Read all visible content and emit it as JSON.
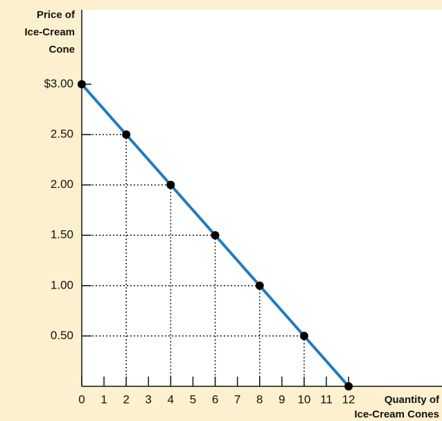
{
  "chart_data": {
    "type": "line",
    "ylabel": [
      "Price of",
      "Ice-Cream",
      "Cone"
    ],
    "xlabel": [
      "Quantity of",
      "Ice-Cream Cones"
    ],
    "x": [
      0,
      2,
      4,
      6,
      8,
      10,
      12
    ],
    "series": [
      {
        "color": "#1f7bc0",
        "values": [
          3,
          2.5,
          2,
          1.5,
          1,
          0.5,
          0
        ]
      }
    ],
    "xlim": [
      0,
      16.2
    ],
    "ylim": [
      0,
      3.74
    ],
    "xticks": [
      0,
      1,
      2,
      3,
      4,
      5,
      6,
      7,
      8,
      9,
      10,
      11,
      12
    ],
    "yticks": [
      {
        "value": 0.5,
        "label": "0.50"
      },
      {
        "value": 1,
        "label": "1.00"
      },
      {
        "value": 1.5,
        "label": "1.50"
      },
      {
        "value": 2,
        "label": "2.00"
      },
      {
        "value": 2.5,
        "label": "2.50"
      },
      {
        "value": 3,
        "label": "$3.00"
      }
    ]
  }
}
